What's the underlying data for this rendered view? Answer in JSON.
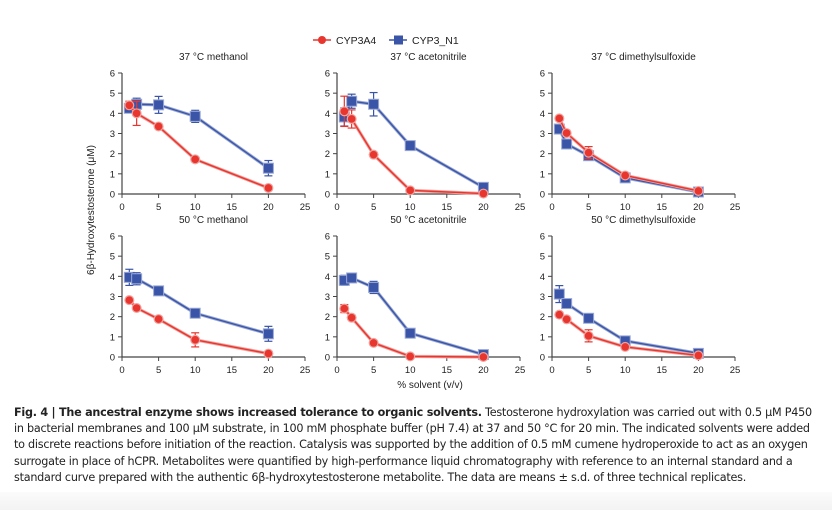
{
  "figure": {
    "legend": [
      {
        "name": "CYP3A4",
        "color": "#e8352e",
        "marker": "circle"
      },
      {
        "name": "CYP3_N1",
        "color": "#3a55a8",
        "marker": "square"
      }
    ],
    "ylabel": "6β-Hydroxytestosterone (μM)",
    "xlabel": "% solvent (v/v)"
  },
  "caption": {
    "label": "Fig. 4 | The ancestral enzyme shows increased tolerance to organic solvents.",
    "text": " Testosterone hydroxylation was carried out with 0.5 μM P450 in bacterial membranes and 100 μM substrate, in 100 mM phosphate buffer (pH 7.4) at 37 and 50 °C for 20 min. The indicated solvents were added to discrete reactions before initiation of the reaction. Catalysis was supported by the addition of 0.5 mM cumene hydroperoxide to act as an oxygen surrogate in place of hCPR. Metabolites were quantified by high-performance liquid chromatography with reference to an internal standard and a standard curve prepared with the authentic 6β-hydroxytestosterone metabolite. The data are means ± s.d. of three technical replicates."
  },
  "chart_data": [
    {
      "type": "line",
      "title": "37 °C methanol",
      "x": [
        1,
        2,
        5,
        10,
        20
      ],
      "xlim": [
        0,
        25
      ],
      "ylim": [
        0,
        6
      ],
      "xticks": [
        "0",
        "5",
        "10",
        "15",
        "20",
        "25"
      ],
      "yticks": [
        "0",
        "1",
        "2",
        "3",
        "4",
        "5",
        "6"
      ],
      "series": [
        {
          "name": "CYP3A4",
          "values": [
            4.4,
            4.0,
            3.35,
            1.72,
            0.3
          ],
          "err": [
            0.2,
            0.6,
            0.1,
            0.1,
            0.05
          ]
        },
        {
          "name": "CYP3_N1",
          "values": [
            4.25,
            4.45,
            4.42,
            3.85,
            1.28
          ],
          "err": [
            0.2,
            0.3,
            0.42,
            0.3,
            0.38
          ]
        }
      ]
    },
    {
      "type": "line",
      "title": "37 °C acetonitrile",
      "x": [
        1,
        2,
        5,
        10,
        20
      ],
      "xlim": [
        0,
        25
      ],
      "ylim": [
        0,
        6
      ],
      "xticks": [
        "0",
        "5",
        "10",
        "15",
        "20",
        "25"
      ],
      "yticks": [
        "0",
        "1",
        "2",
        "3",
        "4",
        "5",
        "6"
      ],
      "series": [
        {
          "name": "CYP3A4",
          "values": [
            4.1,
            3.72,
            1.95,
            0.18,
            0.02
          ],
          "err": [
            0.75,
            0.45,
            0.1,
            0.1,
            0.03
          ]
        },
        {
          "name": "CYP3_N1",
          "values": [
            3.82,
            4.6,
            4.45,
            2.4,
            0.33
          ],
          "err": [
            0.45,
            0.35,
            0.58,
            0.1,
            0.08
          ]
        }
      ]
    },
    {
      "type": "line",
      "title": "37 °C dimethylsulfoxide",
      "x": [
        1,
        2,
        5,
        10,
        20
      ],
      "xlim": [
        0,
        25
      ],
      "ylim": [
        0,
        6
      ],
      "xticks": [
        "0",
        "5",
        "10",
        "15",
        "20",
        "25"
      ],
      "yticks": [
        "0",
        "1",
        "2",
        "3",
        "4",
        "5",
        "6"
      ],
      "series": [
        {
          "name": "CYP3A4",
          "values": [
            3.75,
            3.02,
            2.05,
            0.92,
            0.15
          ],
          "err": [
            0.05,
            0.05,
            0.3,
            0.08,
            0.05
          ]
        },
        {
          "name": "CYP3_N1",
          "values": [
            3.22,
            2.48,
            1.9,
            0.8,
            0.1
          ],
          "err": [
            0.1,
            0.12,
            0.15,
            0.08,
            0.05
          ]
        }
      ]
    },
    {
      "type": "line",
      "title": "50 °C methanol",
      "x": [
        1,
        2,
        5,
        10,
        20
      ],
      "xlim": [
        0,
        25
      ],
      "ylim": [
        0,
        6
      ],
      "xticks": [
        "0",
        "5",
        "10",
        "15",
        "20",
        "25"
      ],
      "yticks": [
        "0",
        "1",
        "2",
        "3",
        "4",
        "5",
        "6"
      ],
      "series": [
        {
          "name": "CYP3A4",
          "values": [
            2.82,
            2.43,
            1.88,
            0.85,
            0.17
          ],
          "err": [
            0.05,
            0.05,
            0.05,
            0.35,
            0.05
          ]
        },
        {
          "name": "CYP3_N1",
          "values": [
            3.95,
            3.88,
            3.28,
            2.17,
            1.15
          ],
          "err": [
            0.4,
            0.3,
            0.15,
            0.12,
            0.37
          ]
        }
      ]
    },
    {
      "type": "line",
      "title": "50 °C acetonitrile",
      "x": [
        1,
        2,
        5,
        10,
        20
      ],
      "xlim": [
        0,
        25
      ],
      "ylim": [
        0,
        6
      ],
      "xticks": [
        "0",
        "5",
        "10",
        "15",
        "20",
        "25"
      ],
      "yticks": [
        "0",
        "1",
        "2",
        "3",
        "4",
        "5",
        "6"
      ],
      "series": [
        {
          "name": "CYP3A4",
          "values": [
            2.4,
            1.95,
            0.7,
            0.03,
            0.0
          ],
          "err": [
            0.2,
            0.08,
            0.05,
            0.03,
            0.02
          ]
        },
        {
          "name": "CYP3_N1",
          "values": [
            3.8,
            3.92,
            3.45,
            1.18,
            0.12
          ],
          "err": [
            0.25,
            0.1,
            0.3,
            0.08,
            0.05
          ]
        }
      ]
    },
    {
      "type": "line",
      "title": "50 °C dimethylsulfoxide",
      "x": [
        1,
        2,
        5,
        10,
        20
      ],
      "xlim": [
        0,
        25
      ],
      "ylim": [
        0,
        6
      ],
      "xticks": [
        "0",
        "5",
        "10",
        "15",
        "20",
        "25"
      ],
      "yticks": [
        "0",
        "1",
        "2",
        "3",
        "4",
        "5",
        "6"
      ],
      "series": [
        {
          "name": "CYP3A4",
          "values": [
            2.1,
            1.87,
            1.05,
            0.5,
            0.08
          ],
          "err": [
            0.05,
            0.05,
            0.3,
            0.05,
            0.03
          ]
        },
        {
          "name": "CYP3_N1",
          "values": [
            3.12,
            2.65,
            1.92,
            0.8,
            0.18
          ],
          "err": [
            0.42,
            0.1,
            0.1,
            0.1,
            0.05
          ]
        }
      ]
    }
  ]
}
